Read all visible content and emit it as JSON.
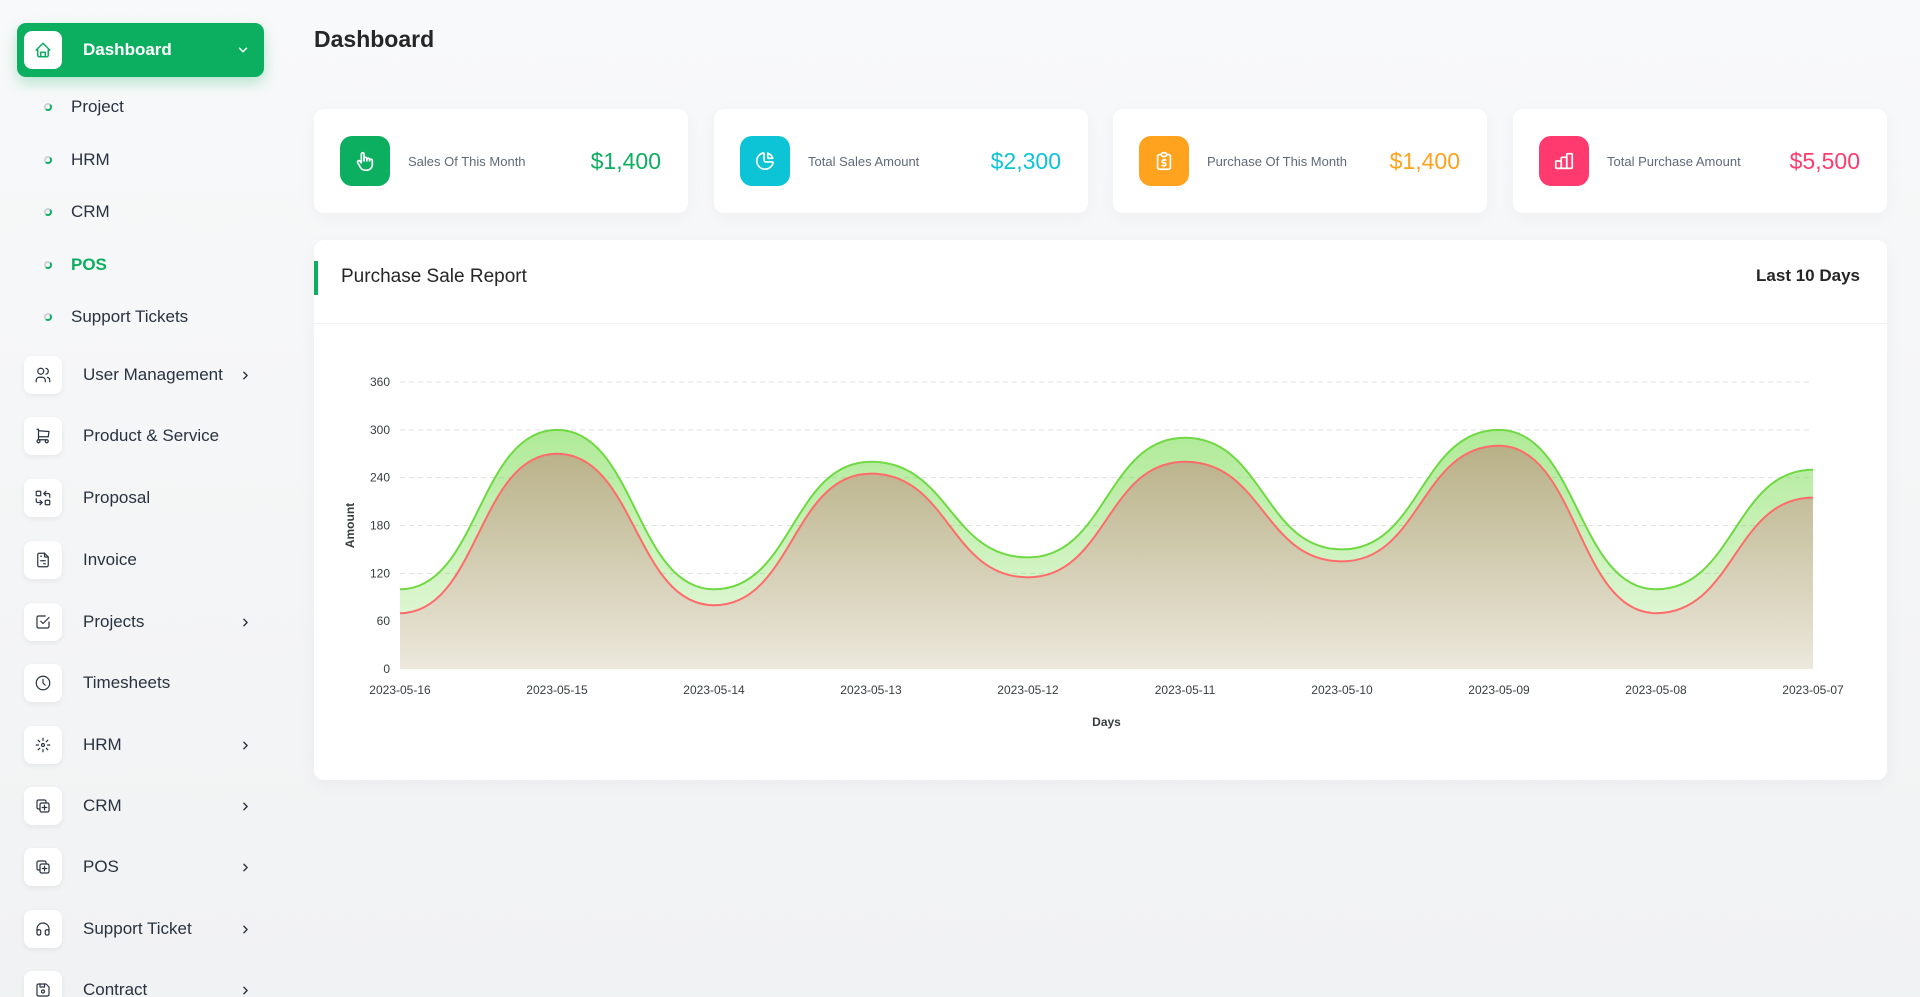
{
  "sidebar": {
    "active": {
      "label": "Dashboard",
      "icon": "home-icon"
    },
    "sub_items": [
      {
        "label": "Project",
        "active": false
      },
      {
        "label": "HRM",
        "active": false
      },
      {
        "label": "CRM",
        "active": false
      },
      {
        "label": "POS",
        "active": true
      },
      {
        "label": "Support Tickets",
        "active": false
      }
    ],
    "items": [
      {
        "label": "User Management",
        "icon": "users-icon",
        "has_submenu": true
      },
      {
        "label": "Product & Service",
        "icon": "cart-icon",
        "has_submenu": false
      },
      {
        "label": "Proposal",
        "icon": "transfer-icon",
        "has_submenu": false
      },
      {
        "label": "Invoice",
        "icon": "file-invoice-icon",
        "has_submenu": false
      },
      {
        "label": "Projects",
        "icon": "checkbox-icon",
        "has_submenu": true
      },
      {
        "label": "Timesheets",
        "icon": "clock-icon",
        "has_submenu": false
      },
      {
        "label": "HRM",
        "icon": "hrm-icon",
        "has_submenu": true
      },
      {
        "label": "CRM",
        "icon": "layers-icon",
        "has_submenu": true
      },
      {
        "label": "POS",
        "icon": "layers-icon",
        "has_submenu": true
      },
      {
        "label": "Support Ticket",
        "icon": "headphones-icon",
        "has_submenu": true
      },
      {
        "label": "Contract",
        "icon": "device-floppy-icon",
        "has_submenu": true
      }
    ]
  },
  "header": {
    "title": "Dashboard"
  },
  "stats": [
    {
      "label": "Sales Of This Month",
      "value": "$1,400",
      "color": "#0caf60",
      "icon": "hand-click-icon"
    },
    {
      "label": "Total Sales Amount",
      "value": "$2,300",
      "color": "#0cc4d6",
      "icon": "chart-pie-icon"
    },
    {
      "label": "Purchase Of This Month",
      "value": "$1,400",
      "color": "#ffa21d",
      "icon": "clipboard-icon"
    },
    {
      "label": "Total Purchase Amount",
      "value": "$5,500",
      "color": "#ff3a6e",
      "icon": "bar-chart-icon"
    }
  ],
  "report": {
    "title": "Purchase Sale Report",
    "filter": "Last 10 Days"
  },
  "chart_data": {
    "type": "area",
    "x": [
      "2023-05-16",
      "2023-05-15",
      "2023-05-14",
      "2023-05-13",
      "2023-05-12",
      "2023-05-11",
      "2023-05-10",
      "2023-05-09",
      "2023-05-08",
      "2023-05-07"
    ],
    "series": [
      {
        "color": "#6fd943",
        "values": [
          100,
          300,
          100,
          260,
          140,
          290,
          150,
          300,
          100,
          250
        ]
      },
      {
        "color": "#ff6b6b",
        "values": [
          70,
          270,
          80,
          245,
          115,
          260,
          135,
          280,
          70,
          215
        ]
      }
    ],
    "xlabel": "Days",
    "ylabel": "Amount",
    "ylim": [
      0,
      360
    ],
    "yticks": [
      0,
      60,
      120,
      180,
      240,
      300,
      360
    ],
    "grid": true
  }
}
